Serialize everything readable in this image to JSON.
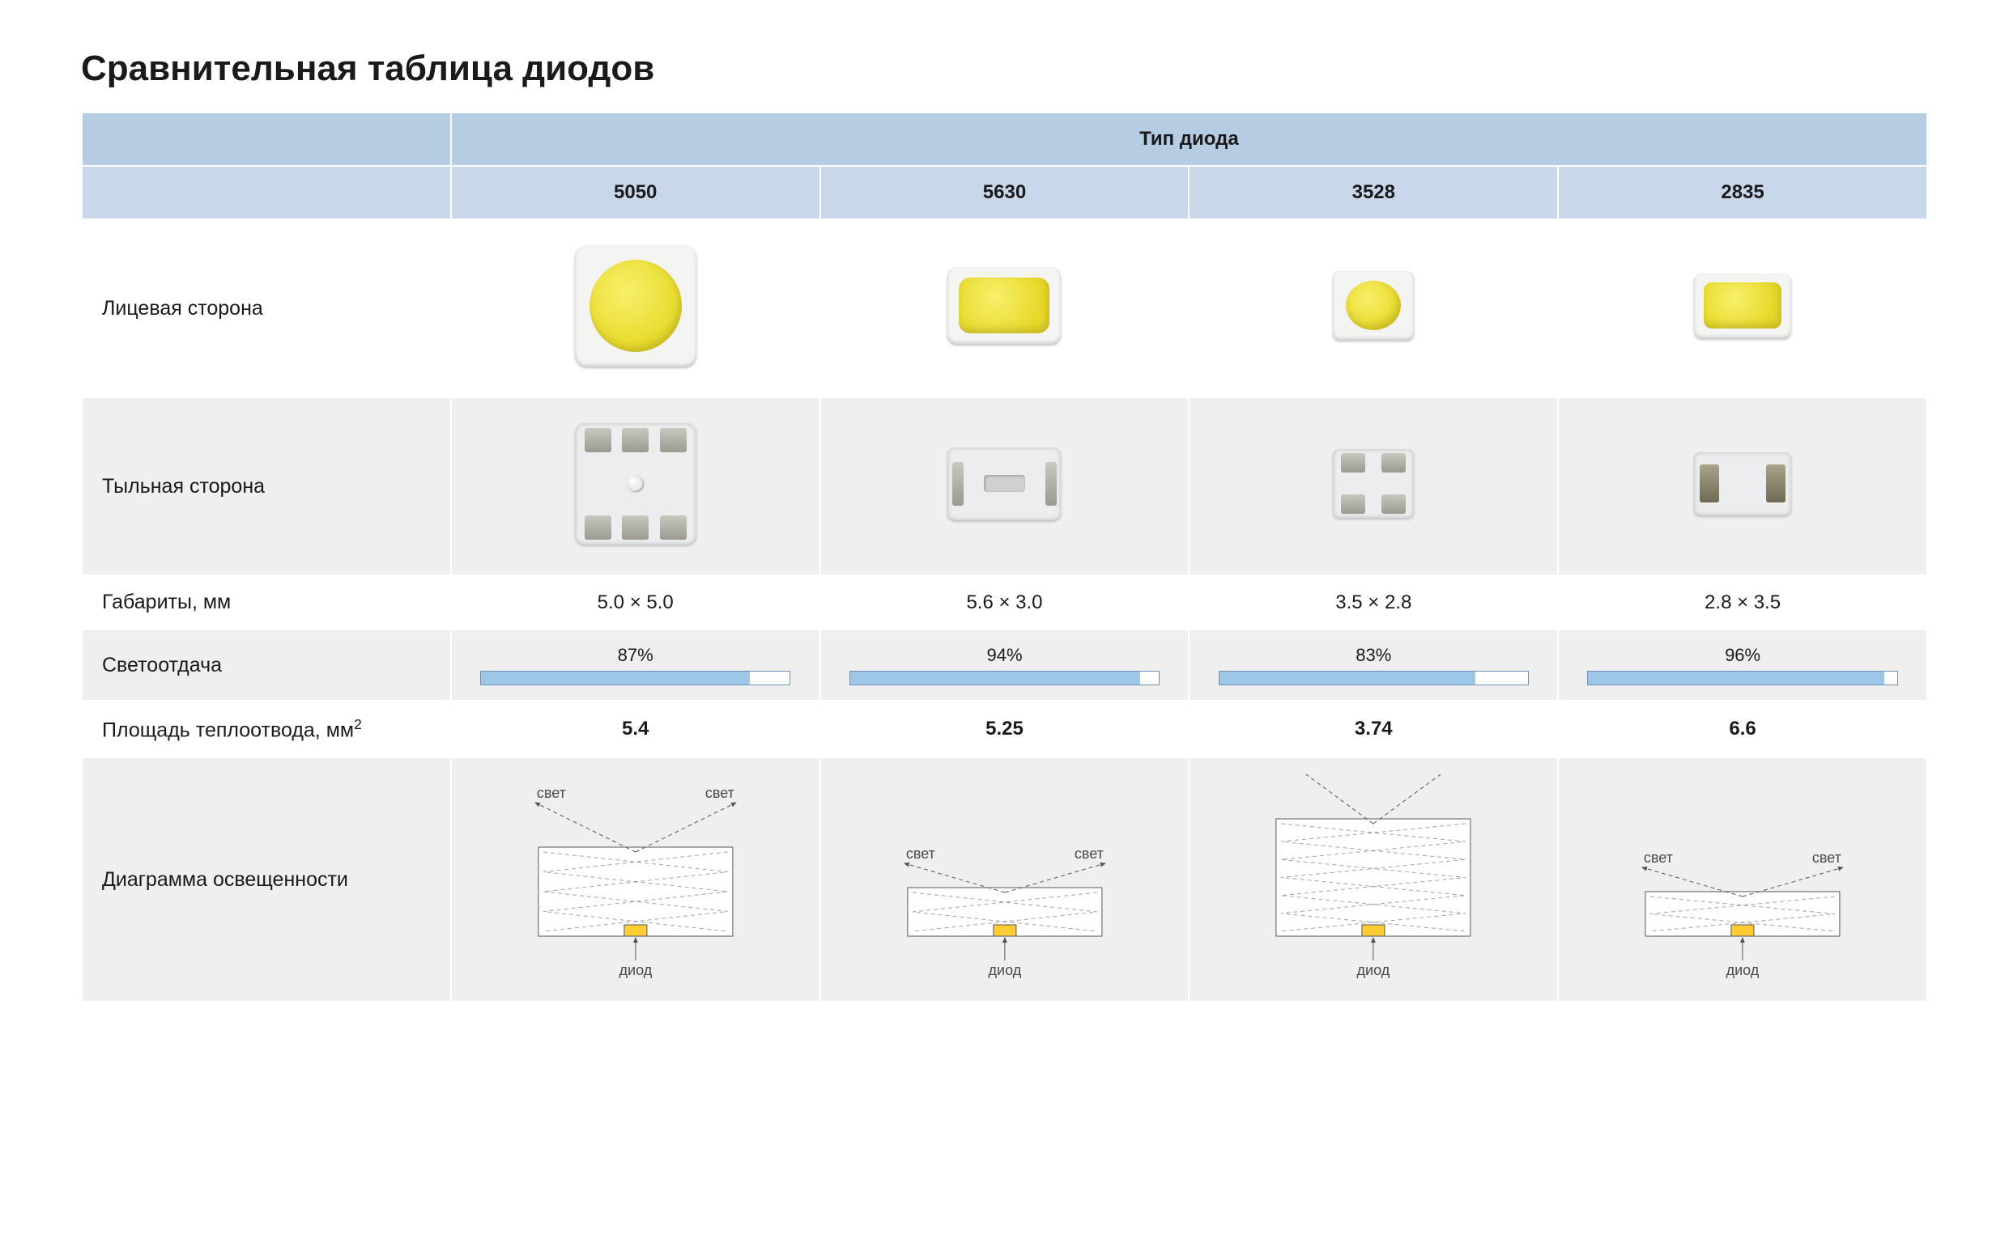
{
  "title": "Сравнительная таблица диодов",
  "header": {
    "group": "Тип диода",
    "types": [
      "5050",
      "5630",
      "3528",
      "2835"
    ]
  },
  "rows": {
    "front": {
      "label": "Лицевая сторона"
    },
    "back": {
      "label": "Тыльная сторона"
    },
    "dims": {
      "label": "Габариты, мм",
      "values": [
        "5.0 × 5.0",
        "5.6 × 3.0",
        "3.5 × 2.8",
        "2.8 × 3.5"
      ]
    },
    "output": {
      "label": "Светоотдача",
      "values_text": [
        "87%",
        "94%",
        "83%",
        "96%"
      ],
      "values_pct": [
        87,
        94,
        83,
        96
      ],
      "bar_fill_color": "#9ec6e6",
      "bar_border_color": "#6a92b8",
      "bar_track_color": "#ffffff"
    },
    "heatsink": {
      "label_html": "Площадь теплоотвода, мм²",
      "label": "Площадь теплоотвода, мм",
      "label_super": "2",
      "values": [
        "5.4",
        "5.25",
        "3.74",
        "6.6"
      ]
    },
    "diagram": {
      "label": "Диаграмма освещенности",
      "light_label": "свет",
      "diode_label": "диод",
      "box_heights": [
        110,
        60,
        145,
        55
      ],
      "ray_y_offsets": [
        -55,
        -30,
        -85,
        -30
      ],
      "stroke_color": "#555555",
      "box_fill": "#ffffff",
      "diode_fill": "#ffcc33",
      "ray_dash": "5,4"
    }
  },
  "colors": {
    "header_bg": "#b5cce2",
    "header_light": "#c8d8ea",
    "row_grey": "#efefef",
    "row_white": "#ffffff",
    "text": "#1a1a1a",
    "led_yellow": "#e8d92a"
  },
  "layout": {
    "col1_width_pct": 20,
    "data_col_width_pct": 20
  }
}
